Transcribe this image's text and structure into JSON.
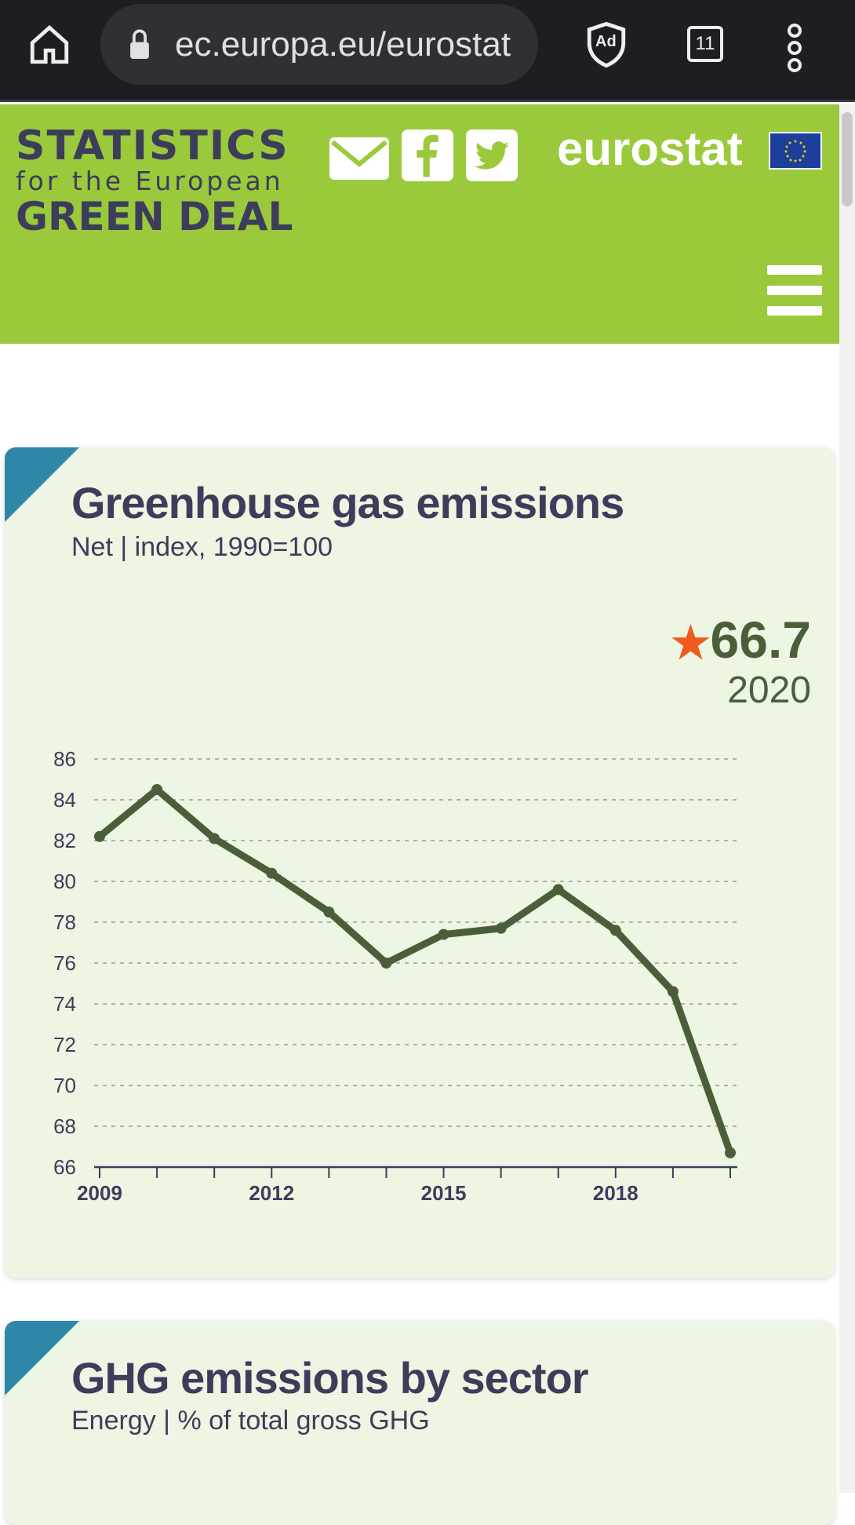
{
  "browser": {
    "url": "ec.europa.eu/eurostat",
    "tab_count": "11",
    "adblock_label": "Ad"
  },
  "header": {
    "logo_line1": "STATISTICS",
    "logo_line2": "for the European",
    "logo_line3": "GREEN DEAL",
    "brand": "eurostat"
  },
  "cards": [
    {
      "title": "Greenhouse gas emissions",
      "subtitle": "Net | index, 1990=100",
      "kpi_value": "66.7",
      "kpi_year": "2020"
    },
    {
      "title": "GHG emissions by sector",
      "subtitle": "Energy | % of total gross GHG"
    }
  ],
  "colors": {
    "line": "#4a5e3a",
    "header": "#9bc93c",
    "star": "#f05a1e",
    "accent": "#2e86a8"
  },
  "chart_data": {
    "type": "line",
    "title": "Greenhouse gas emissions",
    "subtitle": "Net | index, 1990=100",
    "x": [
      2009,
      2010,
      2011,
      2012,
      2013,
      2014,
      2015,
      2016,
      2017,
      2018,
      2019,
      2020
    ],
    "values": [
      82.2,
      84.5,
      82.1,
      80.4,
      78.5,
      76.0,
      77.4,
      77.7,
      79.6,
      77.6,
      74.6,
      66.7
    ],
    "yticks": [
      86,
      84,
      82,
      80,
      78,
      76,
      74,
      72,
      70,
      68,
      66
    ],
    "xtick_labels": [
      "2009",
      "2012",
      "2015",
      "2018"
    ],
    "ylim": [
      66,
      86
    ],
    "xlim": [
      2009,
      2020
    ],
    "grid": "dashed horizontal",
    "legend": "none"
  }
}
